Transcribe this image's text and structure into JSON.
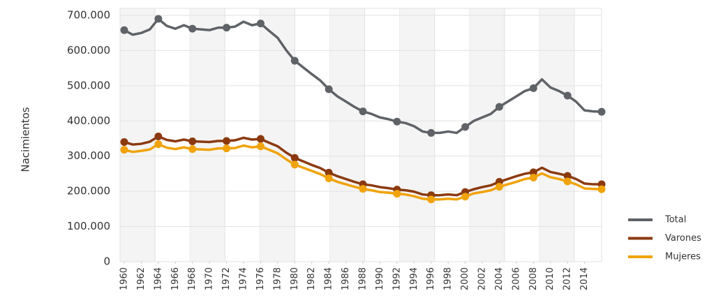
{
  "chart_data": {
    "type": "line",
    "y_label": "Nacimientos",
    "x": [
      1960,
      1961,
      1962,
      1963,
      1964,
      1965,
      1966,
      1967,
      1968,
      1969,
      1970,
      1971,
      1972,
      1973,
      1974,
      1975,
      1976,
      1977,
      1978,
      1979,
      1980,
      1981,
      1982,
      1983,
      1984,
      1985,
      1986,
      1987,
      1988,
      1989,
      1990,
      1991,
      1992,
      1993,
      1994,
      1995,
      1996,
      1997,
      1998,
      1999,
      2000,
      2001,
      2002,
      2003,
      2004,
      2005,
      2006,
      2007,
      2008,
      2009,
      2010,
      2011,
      2012,
      2013,
      2014,
      2015,
      2016
    ],
    "series": [
      {
        "name": "Total",
        "color": "#5f6266",
        "values": [
          658000,
          645000,
          650000,
          660000,
          690000,
          670000,
          662000,
          672000,
          662000,
          660000,
          658000,
          665000,
          665000,
          668000,
          682000,
          672000,
          677000,
          656000,
          636000,
          601000,
          571000,
          552000,
          533000,
          515000,
          490000,
          470000,
          455000,
          440000,
          427000,
          420000,
          410000,
          405000,
          398000,
          394000,
          385000,
          370000,
          366000,
          366000,
          370000,
          366000,
          383000,
          400000,
          410000,
          420000,
          440000,
          455000,
          470000,
          485000,
          493000,
          518000,
          495000,
          485000,
          472000,
          455000,
          430000,
          427000,
          426000
        ]
      },
      {
        "name": "Varones",
        "color": "#8b3a0f",
        "values": [
          340000,
          333000,
          335000,
          341000,
          356000,
          346000,
          342000,
          347000,
          342000,
          341000,
          340000,
          343000,
          343000,
          345000,
          352000,
          347000,
          349000,
          338000,
          328000,
          310000,
          295000,
          285000,
          275000,
          266000,
          253000,
          243000,
          235000,
          227000,
          220000,
          217000,
          212000,
          209000,
          205000,
          203000,
          199000,
          191000,
          189000,
          189000,
          191000,
          189000,
          198000,
          206000,
          212000,
          217000,
          227000,
          235000,
          243000,
          250000,
          254000,
          267000,
          255000,
          250000,
          244000,
          235000,
          222000,
          220000,
          220000
        ]
      },
      {
        "name": "Mujeres",
        "color": "#f0a30a",
        "values": [
          318000,
          312000,
          315000,
          319000,
          334000,
          324000,
          320000,
          325000,
          320000,
          319000,
          318000,
          322000,
          322000,
          323000,
          330000,
          325000,
          328000,
          318000,
          308000,
          291000,
          276000,
          267000,
          258000,
          249000,
          237000,
          227000,
          220000,
          213000,
          207000,
          203000,
          198000,
          196000,
          193000,
          191000,
          186000,
          179000,
          177000,
          177000,
          179000,
          177000,
          185000,
          194000,
          198000,
          203000,
          213000,
          220000,
          227000,
          235000,
          239000,
          251000,
          240000,
          235000,
          228000,
          220000,
          208000,
          207000,
          206000
        ]
      }
    ],
    "xlim": [
      1960,
      2016
    ],
    "xticks": [
      1960,
      1962,
      1964,
      1966,
      1968,
      1970,
      1972,
      1974,
      1976,
      1978,
      1980,
      1982,
      1984,
      1986,
      1988,
      1990,
      1992,
      1994,
      1996,
      1998,
      2000,
      2002,
      2004,
      2006,
      2008,
      2010,
      2012,
      2014
    ],
    "ylim": [
      0,
      700000
    ],
    "yticks": [
      {
        "value": 0,
        "label": "0"
      },
      {
        "value": 100000,
        "label": "100.000"
      },
      {
        "value": 200000,
        "label": "200.000"
      },
      {
        "value": 300000,
        "label": "300.000"
      },
      {
        "value": 400000,
        "label": "400.000"
      },
      {
        "value": 500000,
        "label": "500.000"
      },
      {
        "value": 600000,
        "label": "600.000"
      },
      {
        "value": 700000,
        "label": "700.000"
      }
    ],
    "grid": true,
    "legend": "right"
  }
}
